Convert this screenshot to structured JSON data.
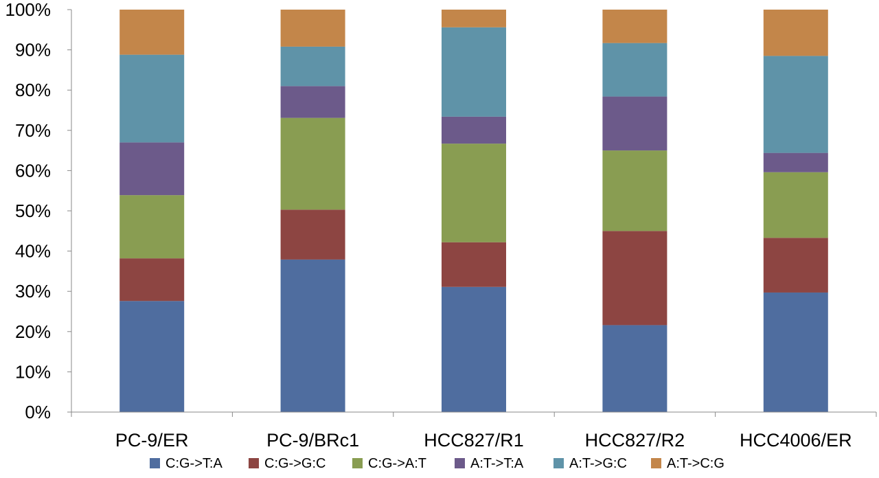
{
  "chart_data": {
    "type": "bar",
    "stacked": true,
    "percent_stacked": true,
    "categories": [
      "PC-9/ER",
      "PC-9/BRc1",
      "HCC827/R1",
      "HCC827/R2",
      "HCC4006/ER"
    ],
    "series": [
      {
        "name": "C:G->T:A",
        "color": "#4f6d9f",
        "values": [
          27.6,
          37.9,
          31.1,
          21.6,
          29.7
        ]
      },
      {
        "name": "C:G->G:C",
        "color": "#8d4542",
        "values": [
          10.6,
          12.4,
          11.1,
          23.4,
          13.6
        ]
      },
      {
        "name": "C:G->A:T",
        "color": "#899d52",
        "values": [
          15.7,
          22.8,
          24.5,
          20.0,
          16.3
        ]
      },
      {
        "name": "A:T->T:A",
        "color": "#6c5a8a",
        "values": [
          13.1,
          7.9,
          6.7,
          13.4,
          4.8
        ]
      },
      {
        "name": "A:T->G:C",
        "color": "#5f93a8",
        "values": [
          21.8,
          9.8,
          22.2,
          13.3,
          24.1
        ]
      },
      {
        "name": "A:T->C:G",
        "color": "#c3864a",
        "values": [
          11.2,
          9.2,
          4.4,
          8.3,
          11.5
        ]
      }
    ],
    "y_ticks": [
      "0%",
      "10%",
      "20%",
      "30%",
      "40%",
      "50%",
      "60%",
      "70%",
      "80%",
      "90%",
      "100%"
    ],
    "ylim": [
      0,
      100
    ],
    "title": "",
    "xlabel": "",
    "ylabel": "",
    "grid": false,
    "legend_position": "bottom"
  }
}
